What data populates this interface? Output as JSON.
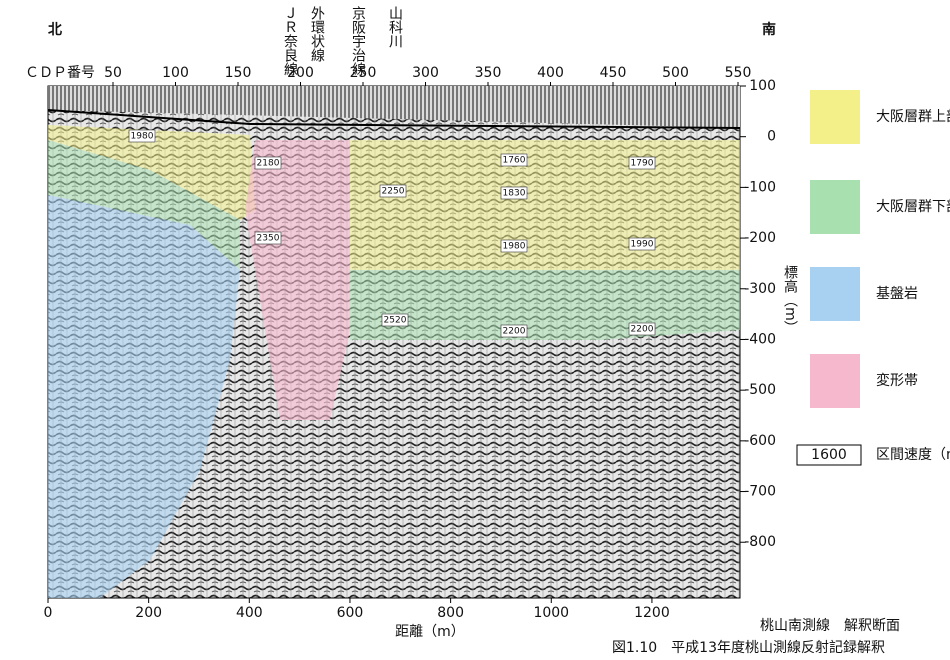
{
  "directions": {
    "north": "北",
    "south": "南"
  },
  "landmarks": [
    "ＪＲ奈良線",
    "外環状線",
    "京阪宇治線",
    "山科川"
  ],
  "cdp_axis": {
    "label": "ＣＤＰ番号",
    "lim": [
      -2,
      551.6
    ],
    "ticks": [
      50,
      100,
      150,
      200,
      250,
      300,
      350,
      400,
      450,
      500,
      550
    ]
  },
  "distance_axis": {
    "label": "距離（m）",
    "lim": [
      0,
      1375
    ],
    "ticks": [
      0,
      200,
      400,
      600,
      800,
      1000,
      1200
    ]
  },
  "elevation_axis": {
    "label": "標高（m）",
    "lim": [
      -910,
      100
    ],
    "ticks": [
      100,
      0,
      -100,
      -200,
      -300,
      -400,
      -500,
      -600,
      -700,
      -800
    ]
  },
  "velocity_labels": [
    "1980",
    "2180",
    "2250",
    "2350",
    "1760",
    "1830",
    "1980",
    "1790",
    "1990",
    "2520",
    "2200",
    "2200"
  ],
  "legend": [
    {
      "label": "大阪層群上部",
      "color": "#f3f08a"
    },
    {
      "label": "大阪層群下部",
      "color": "#a8e0b0"
    },
    {
      "label": "基盤岩",
      "color": "#a8d0f0"
    },
    {
      "label": "変形帯",
      "color": "#f6b8cc"
    },
    {
      "label": "区間速度（m/s）",
      "sample": "1600"
    }
  ],
  "caption": {
    "section": "桃山南測線　解釈断面",
    "figure": "図1.10　平成13年度桃山測線反射記録解釈"
  }
}
